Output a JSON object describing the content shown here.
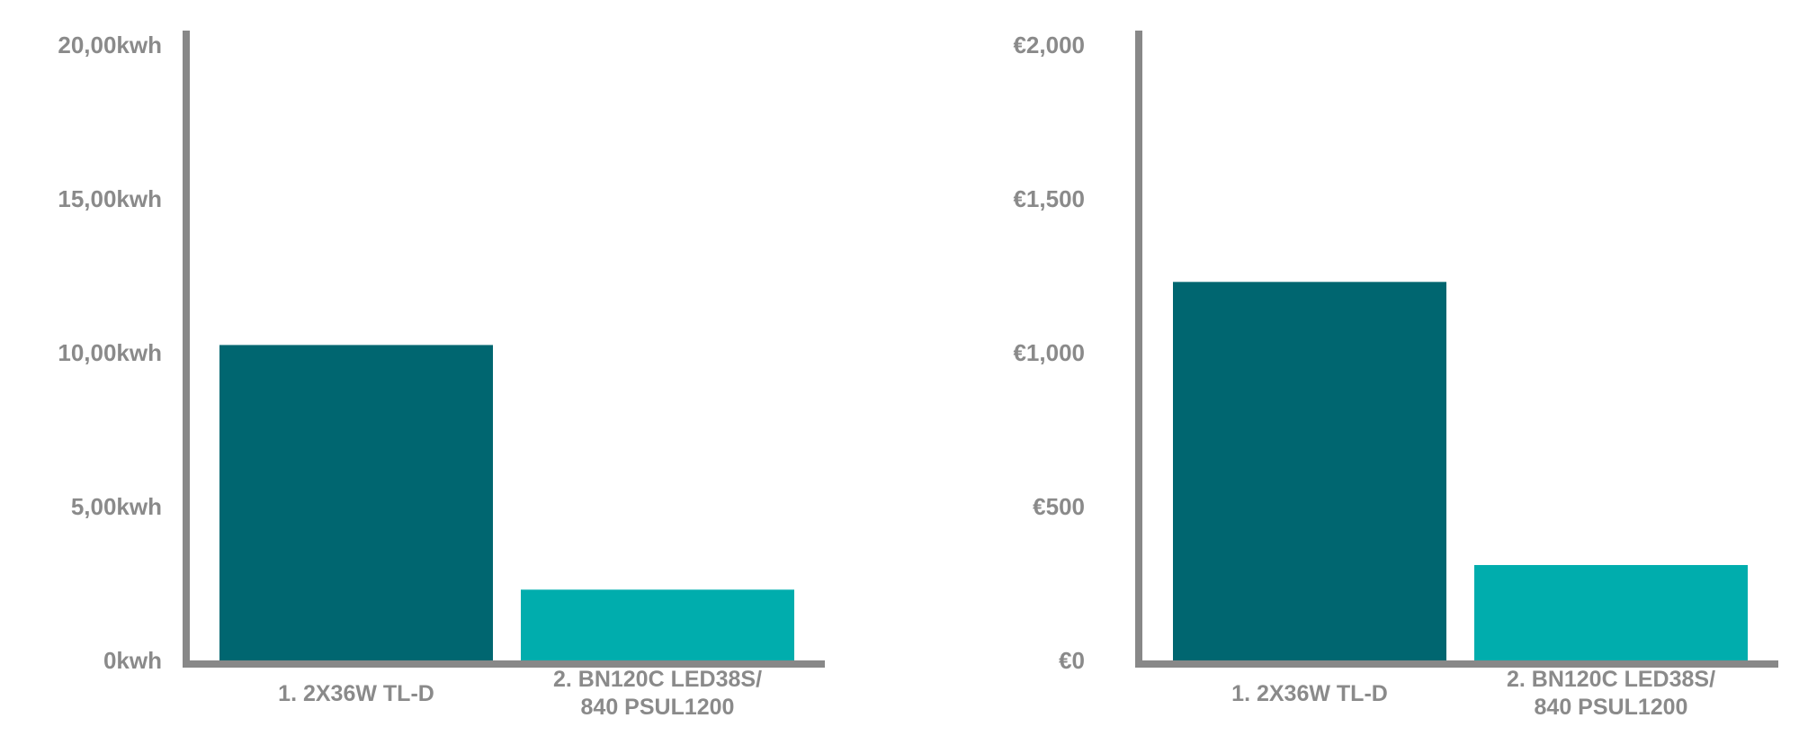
{
  "chart_data": [
    {
      "type": "bar",
      "categories": [
        [
          "1. 2X36W TL-D"
        ],
        [
          "2. BN120C LED38S/",
          "840 PSUL1200"
        ]
      ],
      "values": [
        10250,
        2300
      ],
      "ylim": [
        0,
        20000
      ],
      "yticks": [
        0,
        5000,
        10000,
        15000,
        20000
      ],
      "ytick_labels": [
        "0kwh",
        "5,00kwh",
        "10,00kwh",
        "15,00kwh",
        "20,00kwh"
      ],
      "bar_colors": [
        "#006670",
        "#00adad"
      ],
      "axis_color": "#888888",
      "grid": false,
      "title": "",
      "xlabel": "",
      "ylabel": ""
    },
    {
      "type": "bar",
      "categories": [
        [
          "1. 2X36W TL-D"
        ],
        [
          "2. BN120C LED38S/",
          "840 PSUL1200"
        ]
      ],
      "values": [
        1230,
        310
      ],
      "ylim": [
        0,
        2000
      ],
      "yticks": [
        0,
        500,
        1000,
        1500,
        2000
      ],
      "ytick_labels": [
        "€0",
        "€500",
        "€1,000",
        "€1,500",
        "€2,000"
      ],
      "bar_colors": [
        "#006670",
        "#00adad"
      ],
      "axis_color": "#888888",
      "grid": false,
      "title": "",
      "xlabel": "",
      "ylabel": ""
    }
  ]
}
